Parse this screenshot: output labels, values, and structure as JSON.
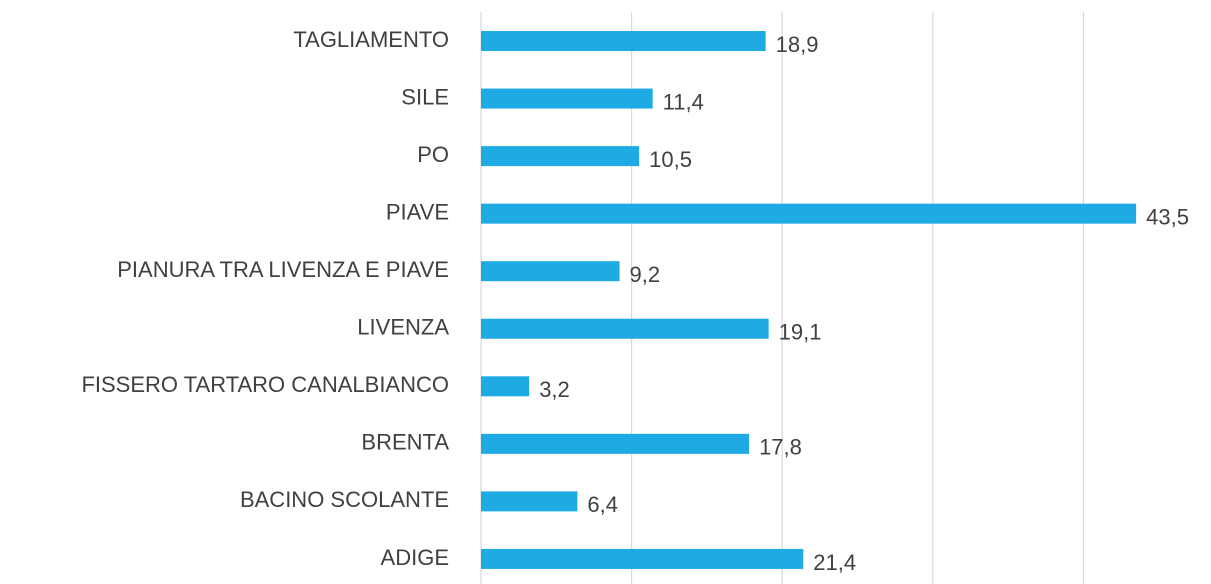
{
  "chart_data": {
    "type": "barh",
    "categories": [
      "TAGLIAMENTO",
      "SILE",
      "PO",
      "PIAVE",
      "PIANURA TRA LIVENZA E PIAVE",
      "LIVENZA",
      "FISSERO TARTARO CANALBIANCO",
      "BRENTA",
      "BACINO SCOLANTE",
      "ADIGE"
    ],
    "values": [
      18.9,
      11.4,
      10.5,
      43.5,
      9.2,
      19.1,
      3.2,
      17.8,
      6.4,
      21.4
    ],
    "value_labels": [
      "18,9",
      "11,4",
      "10,5",
      "43,5",
      "9,2",
      "19,1",
      "3,2",
      "17,8",
      "6,4",
      "21,4"
    ],
    "color": "#1eabe3",
    "xlim": [
      0,
      45
    ],
    "xticks": [
      0,
      10,
      20,
      30,
      40
    ],
    "grid": true
  }
}
